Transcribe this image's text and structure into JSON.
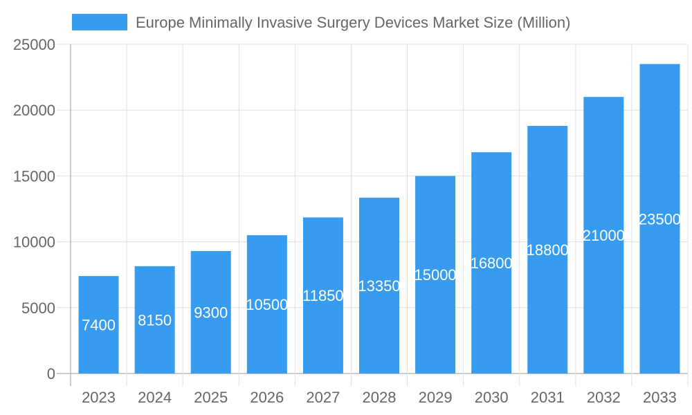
{
  "chart_data": {
    "type": "bar",
    "title": "",
    "legend": {
      "label": "Europe Minimally Invasive Surgery Devices Market Size (Million)",
      "placement": "top"
    },
    "categories": [
      "2023",
      "2024",
      "2025",
      "2026",
      "2027",
      "2028",
      "2029",
      "2030",
      "2031",
      "2032",
      "2033"
    ],
    "series": [
      {
        "name": "Europe Minimally Invasive Surgery Devices Market Size (Million)",
        "values": [
          7400,
          8150,
          9300,
          10500,
          11850,
          13350,
          15000,
          16800,
          18800,
          21000,
          23500
        ]
      }
    ],
    "ylim": [
      0,
      25000
    ],
    "yticks": [
      "0",
      "5000",
      "10000",
      "15000",
      "20000",
      "25000"
    ],
    "grid": true,
    "data_labels": true,
    "colors": {
      "bar": "#379cf0",
      "grid": "#e0e0e0",
      "axis": "#999999",
      "text": "#666666",
      "label": "#ffffff"
    }
  }
}
